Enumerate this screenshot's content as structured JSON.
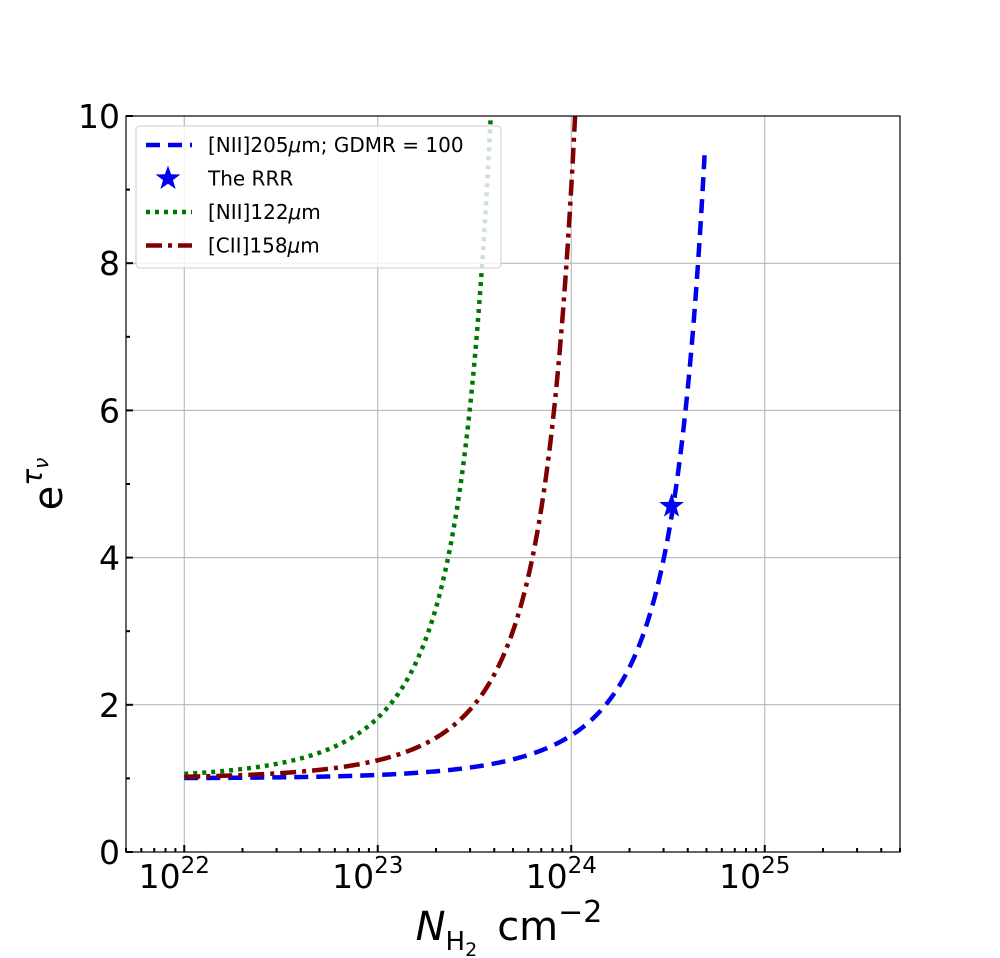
{
  "chart_data": {
    "type": "line",
    "title": "",
    "xlabel": {
      "base": "N",
      "sub": "H",
      "sub2": "2",
      "unit": "cm",
      "unit_sup": "−2"
    },
    "ylabel": {
      "base": "e",
      "sup": "τ",
      "sup_sub": "ν"
    },
    "x_scale": "log",
    "xlim": [
      5e+21,
      5e+25
    ],
    "ylim": [
      0,
      10
    ],
    "grid": true,
    "legend_position": "upper-left",
    "xticks": [
      {
        "value": 1e+22,
        "base": "10",
        "exp": "22"
      },
      {
        "value": 1e+23,
        "base": "10",
        "exp": "23"
      },
      {
        "value": 1e+24,
        "base": "10",
        "exp": "24"
      },
      {
        "value": 1e+25,
        "base": "10",
        "exp": "25"
      }
    ],
    "yticks": [
      0,
      2,
      4,
      6,
      8,
      10
    ],
    "series": [
      {
        "name": "[NII]205μm; GDMR = 100",
        "legend_parts": [
          "[NII]205",
          "μ",
          "m; GDMR = 100"
        ],
        "color": "#0000ee",
        "style": "dashed",
        "tau_per_1e24": 0.46,
        "x_range": [
          1e+22,
          4.9e+24
        ]
      },
      {
        "name": "[NII]122μm",
        "legend_parts": [
          "[NII]122",
          "μ",
          "m"
        ],
        "color": "#007700",
        "style": "dotted",
        "tau_per_1e24": 6.0,
        "x_range": [
          1e+22,
          3.85e+23
        ]
      },
      {
        "name": "[CII]158μm",
        "legend_parts": [
          "[CII]158",
          "μ",
          "m"
        ],
        "color": "#800000",
        "style": "dashdot",
        "tau_per_1e24": 2.2,
        "x_range": [
          1e+22,
          1.05e+24
        ]
      }
    ],
    "markers": [
      {
        "name": "The RRR",
        "x": 3.3e+24,
        "y": 4.7,
        "color": "#0000ee",
        "symbol": "star"
      }
    ]
  }
}
